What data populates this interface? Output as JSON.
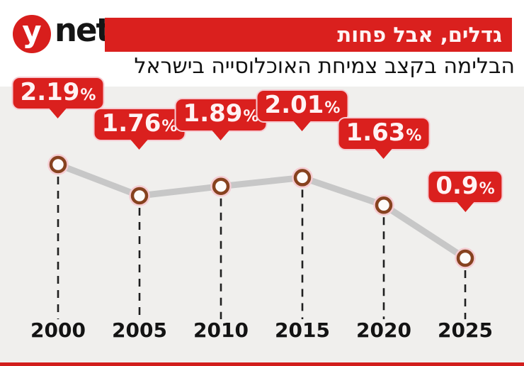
{
  "header": {
    "logo_y": "y",
    "logo_net": "net",
    "banner_title": "גדלים, אבל פחות",
    "subtitle": "הבלימה בקצב צמיחת האוכלוסייה בישראל"
  },
  "chart_data": {
    "type": "line",
    "title": "גדלים, אבל פחות",
    "subtitle": "הבלימה בקצב צמיחת האוכלוסייה בישראל",
    "categories": [
      "2000",
      "2005",
      "2010",
      "2015",
      "2020",
      "2025"
    ],
    "values": [
      2.19,
      1.76,
      1.89,
      2.01,
      1.63,
      0.9
    ],
    "point_labels": [
      "2.19",
      "1.76",
      "1.89",
      "2.01",
      "1.63",
      "0.9"
    ],
    "unit": "%",
    "xlabel": "",
    "ylabel": "",
    "ylim": [
      0.6,
      2.4
    ],
    "grid": false,
    "legend": false,
    "line_color": "#c7c7c7",
    "marker_fill": "#fdfbfa",
    "marker_ring_color": "#87421f",
    "marker_halo_color": "#f6cbd2",
    "dash_color": "#1f1f1f",
    "callout_bg": "#da201e",
    "callout_text_color": "#fff2f3"
  },
  "colors": {
    "brand_red": "#da201e",
    "logo_red": "#d81e1c",
    "header_bg": "#ffffff",
    "chart_bg": "#f0efed",
    "bottom_bar": "#d21d1c",
    "axis_text": "#131313"
  }
}
